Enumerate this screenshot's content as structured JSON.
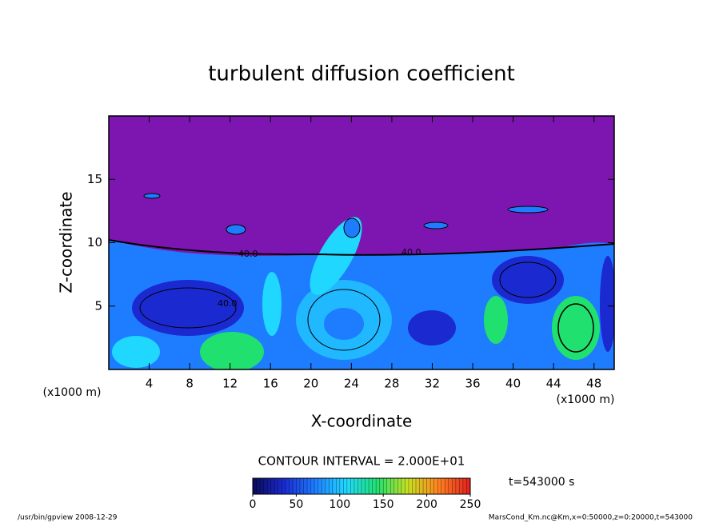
{
  "chart_data": {
    "type": "contour",
    "title": "turbulent diffusion coefficient",
    "x_label": "X-coordinate",
    "y_label": "Z-coordinate",
    "x_unit": "(x1000 m)",
    "y_unit": "(x1000 m)",
    "xlim": [
      0,
      50
    ],
    "ylim": [
      0,
      20
    ],
    "xticks": [
      4,
      8,
      12,
      16,
      20,
      24,
      28,
      32,
      36,
      40,
      44,
      48
    ],
    "yticks": [
      5,
      10,
      15
    ],
    "contour_labels": [
      "40.0",
      "40.0",
      "40.0"
    ],
    "contour_interval": "CONTOUR INTERVAL = 2.000E+01",
    "clim": [
      0,
      250
    ],
    "cticks": [
      0,
      50,
      100,
      150,
      200,
      250
    ],
    "colormap": [
      "#0a0a5a",
      "#1a2ad0",
      "#1e7cff",
      "#20d8ff",
      "#20e070",
      "#c8e020",
      "#ff8020",
      "#e02020"
    ],
    "time_label": "t=543000 s",
    "footer_left": "/usr/bin/gpview  2008-12-29",
    "footer_right": "MarsCond_Km.nc@Km,x=0:50000,z=0:20000,t=543000"
  }
}
